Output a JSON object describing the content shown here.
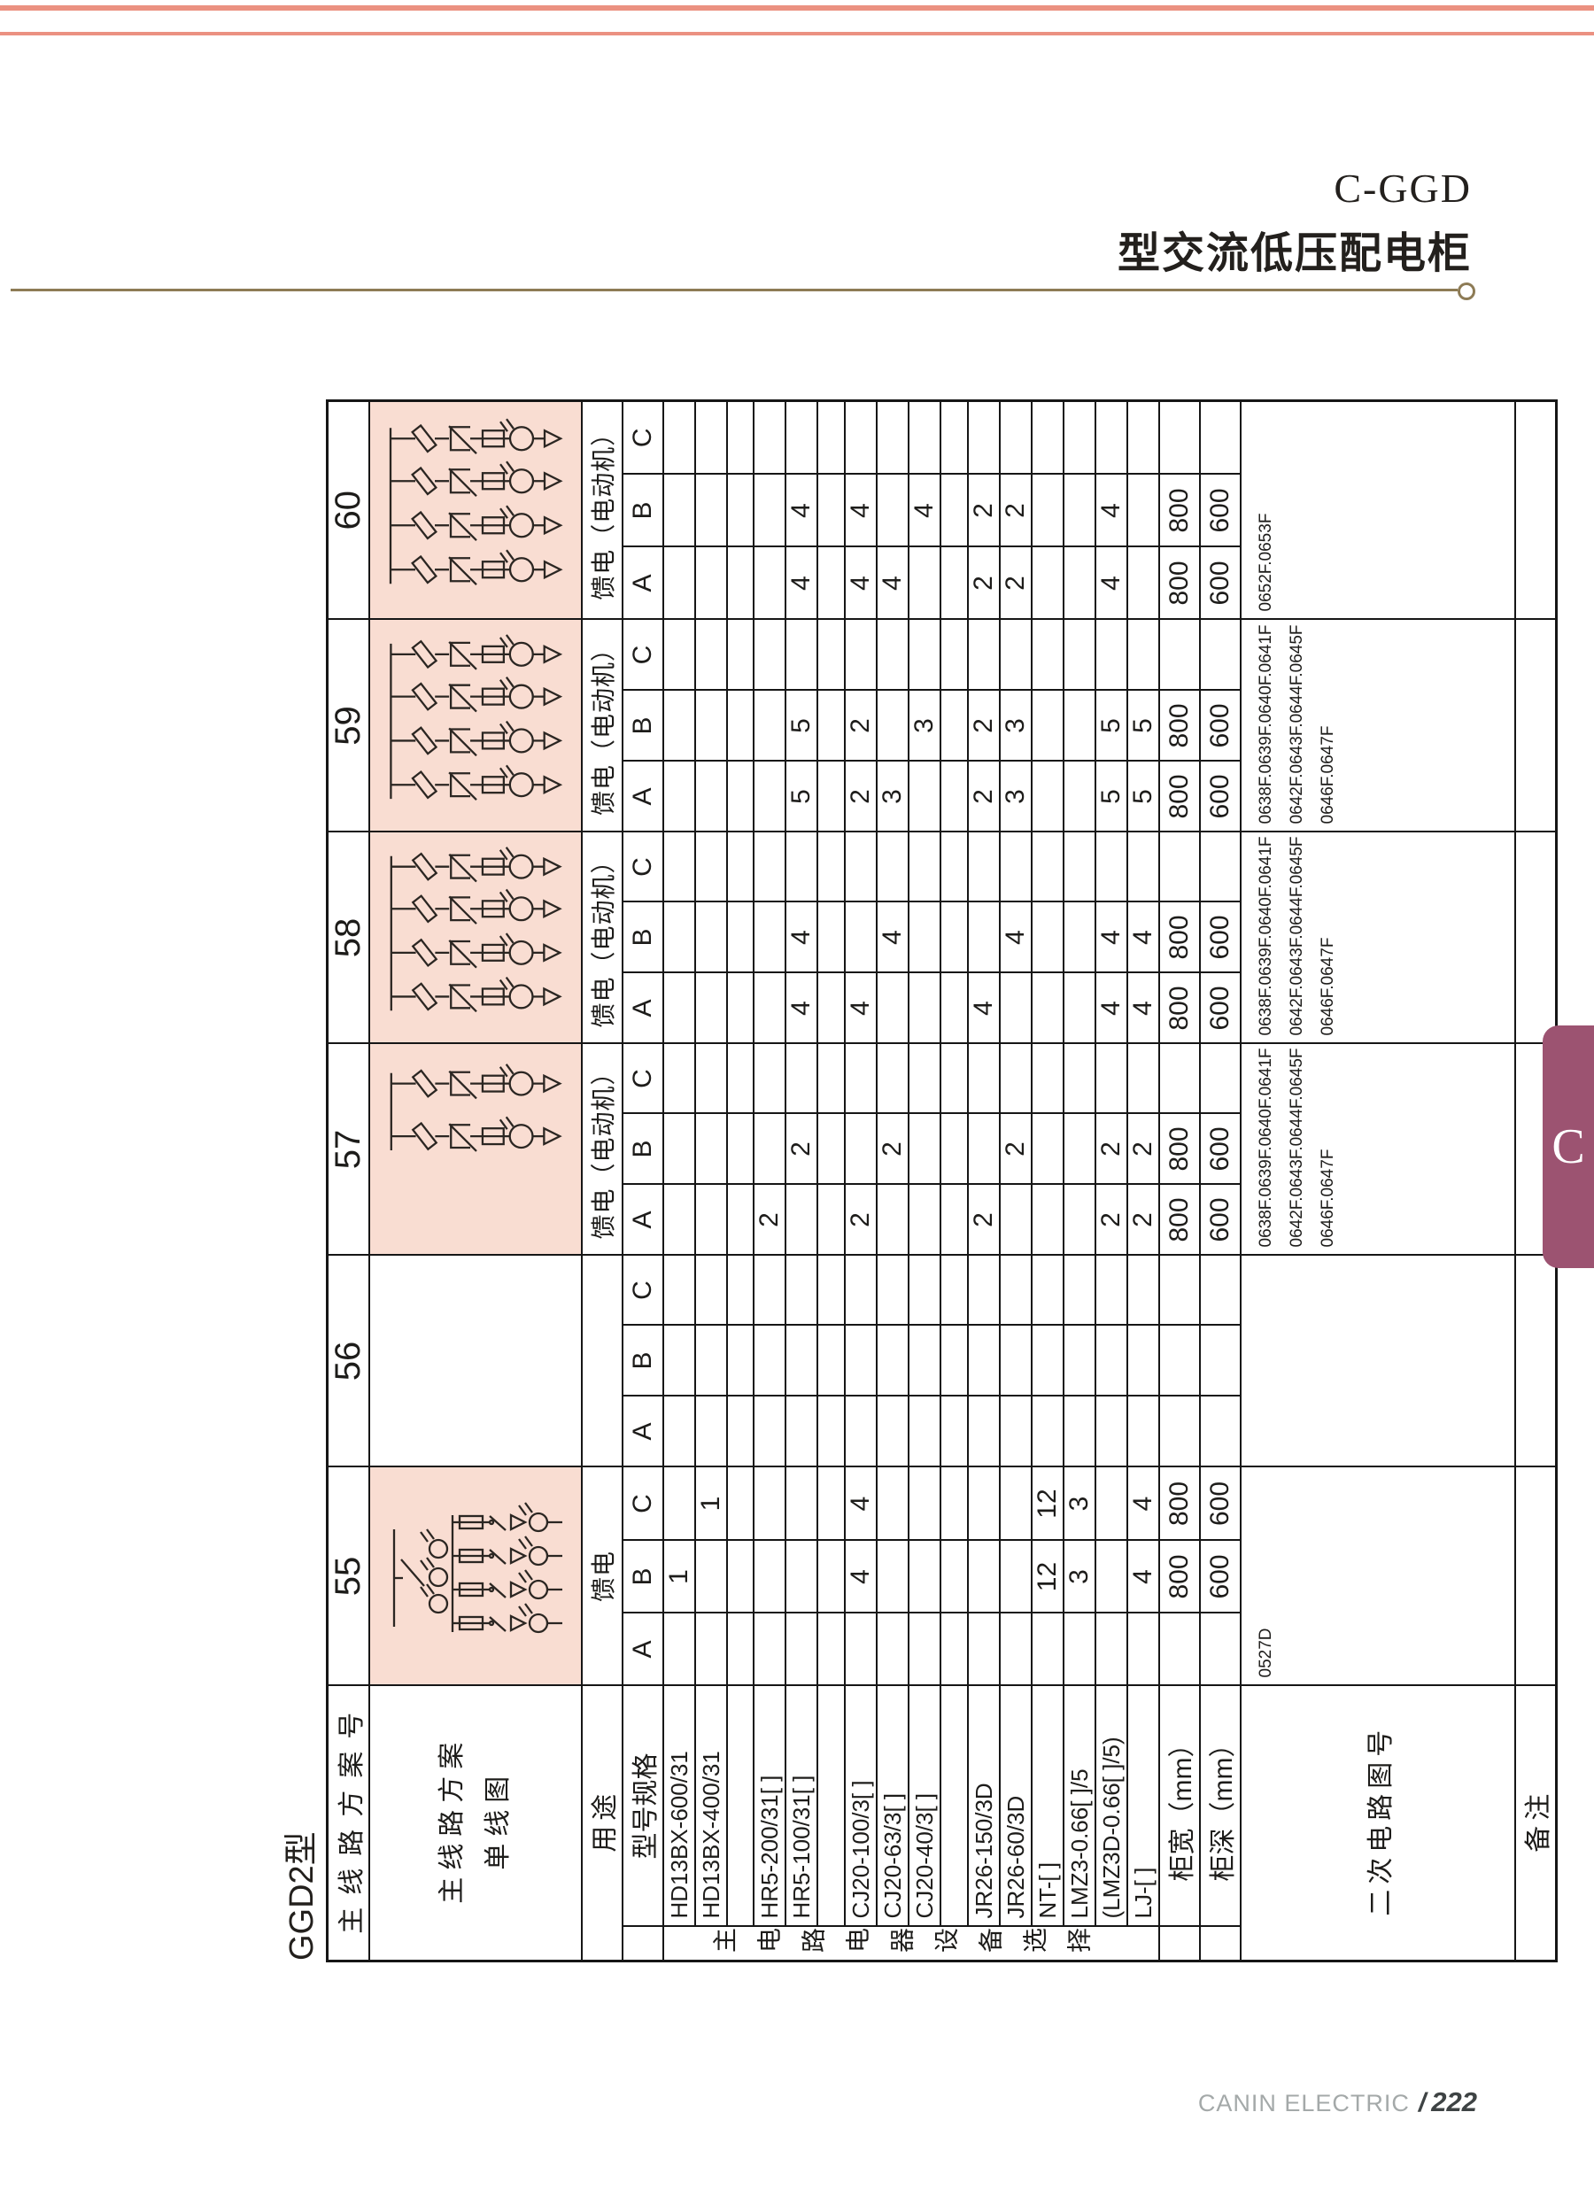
{
  "page": {
    "title_line1": "C-GGD",
    "title_line2": "型交流低压配电柜",
    "series_label": "GGD2型",
    "side_tab": "C",
    "footer_brand": "CANIN ELECTRIC",
    "footer_sep": "/",
    "footer_page": "222"
  },
  "colors": {
    "accent_salmon": "#eb9181",
    "diagram_pink": "#f9ddd2",
    "rule_olive": "#8d7b55",
    "tab_plum": "#9c5371",
    "line_black": "#161616"
  },
  "table": {
    "row_labels": {
      "scheme_no": "主线路方案号",
      "diagram_l1": "主线路方案",
      "diagram_l2": "单线图",
      "usage": "用途",
      "model_spec": "型号规格",
      "group_label": "主电路电器设备选择",
      "width": "柜宽（mm）",
      "depth": "柜深（mm）",
      "secondary": "二次电路图号",
      "remark": "备注"
    },
    "subcols": [
      "A",
      "B",
      "C"
    ],
    "components": [
      "HD13BX-600/31",
      "HD13BX-400/31",
      "",
      "HR5-200/31[ ]",
      "HR5-100/31[ ]",
      "",
      "CJ20-100/3[ ]",
      "CJ20-63/3[ ]",
      "CJ20-40/3[ ]",
      "",
      "JR26-150/3D",
      "JR26-60/3D",
      "NT-[ ]",
      "LMZ3-0.66[ ]/5",
      "(LMZ3D-0.66[ ]/5)",
      "LJ-[ ]"
    ],
    "schemes": [
      {
        "id": "55",
        "usage": "馈电",
        "diagram": {
          "kind": "switch",
          "branches": 4
        },
        "values": [
          [
            "",
            "1",
            ""
          ],
          [
            "",
            "",
            "1"
          ],
          [
            "",
            "",
            ""
          ],
          [
            "",
            "",
            ""
          ],
          [
            "",
            "",
            ""
          ],
          [
            "",
            "",
            ""
          ],
          [
            "",
            "4",
            "4"
          ],
          [
            "",
            "",
            ""
          ],
          [
            "",
            "",
            ""
          ],
          [
            "",
            "",
            ""
          ],
          [
            "",
            "",
            ""
          ],
          [
            "",
            "",
            ""
          ],
          [
            "",
            "12",
            "12"
          ],
          [
            "",
            "3",
            "3"
          ],
          [
            "",
            "",
            ""
          ],
          [
            "",
            "4",
            "4"
          ]
        ],
        "width": [
          "",
          "800",
          "800"
        ],
        "depth": [
          "",
          "600",
          "600"
        ],
        "secondary": [
          "0527D"
        ]
      },
      {
        "id": "56",
        "usage": "",
        "diagram": {
          "kind": "none",
          "branches": 0
        },
        "values": [
          [
            "",
            "",
            ""
          ],
          [
            "",
            "",
            ""
          ],
          [
            "",
            "",
            ""
          ],
          [
            "",
            "",
            ""
          ],
          [
            "",
            "",
            ""
          ],
          [
            "",
            "",
            ""
          ],
          [
            "",
            "",
            ""
          ],
          [
            "",
            "",
            ""
          ],
          [
            "",
            "",
            ""
          ],
          [
            "",
            "",
            ""
          ],
          [
            "",
            "",
            ""
          ],
          [
            "",
            "",
            ""
          ],
          [
            "",
            "",
            ""
          ],
          [
            "",
            "",
            ""
          ],
          [
            "",
            "",
            ""
          ],
          [
            "",
            "",
            ""
          ]
        ],
        "width": [
          "",
          "",
          ""
        ],
        "depth": [
          "",
          "",
          ""
        ],
        "secondary": []
      },
      {
        "id": "57",
        "usage": "馈电（电动机）",
        "diagram": {
          "kind": "motor",
          "branches": 2
        },
        "values": [
          [
            "",
            "",
            ""
          ],
          [
            "",
            "",
            ""
          ],
          [
            "",
            "",
            ""
          ],
          [
            "2",
            "",
            ""
          ],
          [
            "",
            "2",
            ""
          ],
          [
            "",
            "",
            ""
          ],
          [
            "2",
            "",
            ""
          ],
          [
            "",
            "2",
            ""
          ],
          [
            "",
            "",
            ""
          ],
          [
            "",
            "",
            ""
          ],
          [
            "2",
            "",
            ""
          ],
          [
            "",
            "2",
            ""
          ],
          [
            "",
            "",
            ""
          ],
          [
            "",
            "",
            ""
          ],
          [
            "2",
            "2",
            ""
          ],
          [
            "2",
            "2",
            ""
          ]
        ],
        "width": [
          "800",
          "800",
          ""
        ],
        "depth": [
          "600",
          "600",
          ""
        ],
        "secondary": [
          "0638F.0639F.0640F.0641F",
          "0642F.0643F.0644F.0645F",
          "0646F.0647F"
        ]
      },
      {
        "id": "58",
        "usage": "馈电（电动机）",
        "diagram": {
          "kind": "motor",
          "branches": 4
        },
        "values": [
          [
            "",
            "",
            ""
          ],
          [
            "",
            "",
            ""
          ],
          [
            "",
            "",
            ""
          ],
          [
            "",
            "",
            ""
          ],
          [
            "4",
            "4",
            ""
          ],
          [
            "",
            "",
            ""
          ],
          [
            "4",
            "",
            ""
          ],
          [
            "",
            "4",
            ""
          ],
          [
            "",
            "",
            ""
          ],
          [
            "",
            "",
            ""
          ],
          [
            "4",
            "",
            ""
          ],
          [
            "",
            "4",
            ""
          ],
          [
            "",
            "",
            ""
          ],
          [
            "",
            "",
            ""
          ],
          [
            "4",
            "4",
            ""
          ],
          [
            "4",
            "4",
            ""
          ]
        ],
        "width": [
          "800",
          "800",
          ""
        ],
        "depth": [
          "600",
          "600",
          ""
        ],
        "secondary": [
          "0638F.0639F.0640F.0641F",
          "0642F.0643F.0644F.0645F",
          "0646F.0647F"
        ]
      },
      {
        "id": "59",
        "usage": "馈电（电动机）",
        "diagram": {
          "kind": "motor",
          "branches": 4
        },
        "values": [
          [
            "",
            "",
            ""
          ],
          [
            "",
            "",
            ""
          ],
          [
            "",
            "",
            ""
          ],
          [
            "",
            "",
            ""
          ],
          [
            "5",
            "5",
            ""
          ],
          [
            "",
            "",
            ""
          ],
          [
            "2",
            "2",
            ""
          ],
          [
            "3",
            "",
            ""
          ],
          [
            "",
            "3",
            ""
          ],
          [
            "",
            "",
            ""
          ],
          [
            "2",
            "2",
            ""
          ],
          [
            "3",
            "3",
            ""
          ],
          [
            "",
            "",
            ""
          ],
          [
            "",
            "",
            ""
          ],
          [
            "5",
            "5",
            ""
          ],
          [
            "5",
            "5",
            ""
          ]
        ],
        "width": [
          "800",
          "800",
          ""
        ],
        "depth": [
          "600",
          "600",
          ""
        ],
        "secondary": [
          "0638F.0639F.0640F.0641F",
          "0642F.0643F.0644F.0645F",
          "0646F.0647F"
        ]
      },
      {
        "id": "60",
        "usage": "馈电（电动机）",
        "diagram": {
          "kind": "motor",
          "branches": 4
        },
        "values": [
          [
            "",
            "",
            ""
          ],
          [
            "",
            "",
            ""
          ],
          [
            "",
            "",
            ""
          ],
          [
            "",
            "",
            ""
          ],
          [
            "4",
            "4",
            ""
          ],
          [
            "",
            "",
            ""
          ],
          [
            "4",
            "4",
            ""
          ],
          [
            "4",
            "",
            ""
          ],
          [
            "",
            "4",
            ""
          ],
          [
            "",
            "",
            ""
          ],
          [
            "2",
            "2",
            ""
          ],
          [
            "2",
            "2",
            ""
          ],
          [
            "",
            "",
            ""
          ],
          [
            "",
            "",
            ""
          ],
          [
            "4",
            "4",
            ""
          ],
          [
            "",
            "",
            ""
          ]
        ],
        "width": [
          "800",
          "800",
          ""
        ],
        "depth": [
          "600",
          "600",
          ""
        ],
        "secondary": [
          "0652F.0653F"
        ]
      }
    ]
  }
}
